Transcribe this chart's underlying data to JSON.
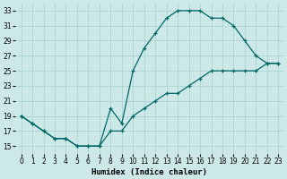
{
  "xlabel": "Humidex (Indice chaleur)",
  "background_color": "#cce9e8",
  "grid_color": "#aad4d3",
  "line_color": "#006666",
  "series1_x": [
    0,
    1,
    2,
    3,
    4,
    5,
    6,
    7,
    8,
    9,
    10,
    11,
    12,
    13,
    14,
    15,
    16,
    17,
    18,
    19,
    20,
    21,
    22,
    23
  ],
  "series1_y": [
    19,
    18,
    17,
    16,
    16,
    15,
    15,
    15,
    20,
    18,
    25,
    28,
    30,
    32,
    33,
    33,
    33,
    32,
    32,
    31,
    29,
    27,
    26,
    26
  ],
  "series2_x": [
    0,
    1,
    2,
    3,
    4,
    5,
    6,
    7,
    8,
    9,
    10,
    11,
    12,
    13,
    14,
    15,
    16,
    17,
    18,
    19,
    20,
    21,
    22,
    23
  ],
  "series2_y": [
    19,
    18,
    17,
    16,
    16,
    15,
    15,
    15,
    17,
    17,
    19,
    20,
    21,
    22,
    22,
    23,
    24,
    25,
    25,
    25,
    25,
    25,
    26,
    26
  ],
  "xlim": [
    -0.5,
    23.5
  ],
  "ylim": [
    14,
    34
  ],
  "yticks": [
    15,
    17,
    19,
    21,
    23,
    25,
    27,
    29,
    31,
    33
  ],
  "xticks": [
    0,
    1,
    2,
    3,
    4,
    5,
    6,
    7,
    8,
    9,
    10,
    11,
    12,
    13,
    14,
    15,
    16,
    17,
    18,
    19,
    20,
    21,
    22,
    23
  ],
  "xlabel_fontsize": 6.5,
  "tick_fontsize": 5.5
}
